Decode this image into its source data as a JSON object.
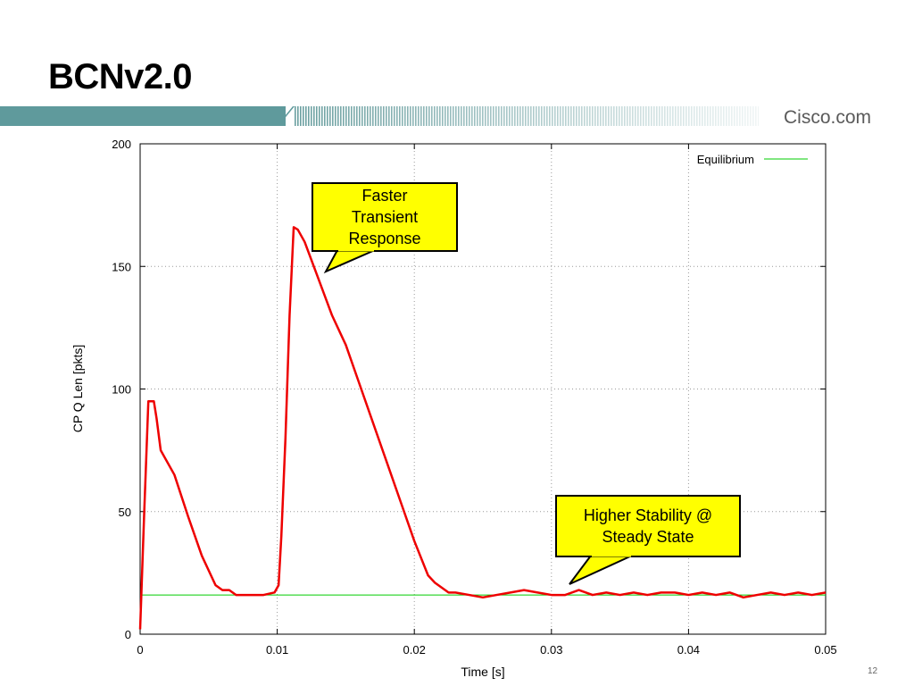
{
  "slide": {
    "title": "BCNv2.0",
    "brand": "Cisco.com",
    "page_number": "12"
  },
  "callouts": {
    "transient": "Faster\nTransient\nResponse",
    "stability": "Higher Stability @\nSteady State"
  },
  "colors": {
    "header_band": "#5f9a9c",
    "queue_series": "#ee0000",
    "equilibrium_series": "#00cc00",
    "callout_fill": "#ffff00"
  },
  "chart_data": {
    "type": "line",
    "xlabel": "Time [s]",
    "ylabel": "CP Q Len [pkts]",
    "xlim": [
      0,
      0.05
    ],
    "ylim": [
      0,
      200
    ],
    "x_ticks": [
      "0",
      "0.01",
      "0.02",
      "0.03",
      "0.04",
      "0.05"
    ],
    "y_ticks": [
      "0",
      "50",
      "100",
      "150",
      "200"
    ],
    "grid": true,
    "legend_position": "top-right",
    "series": [
      {
        "name": "Equilibrium",
        "x": [
          0,
          0.05
        ],
        "y": [
          16,
          16
        ]
      },
      {
        "x": [
          0,
          0.0003,
          0.0006,
          0.001,
          0.0012,
          0.0015,
          0.0025,
          0.0035,
          0.0045,
          0.0055,
          0.006,
          0.0065,
          0.007,
          0.008,
          0.009,
          0.0098,
          0.0101,
          0.0103,
          0.0106,
          0.0109,
          0.0112,
          0.0115,
          0.012,
          0.013,
          0.014,
          0.015,
          0.016,
          0.017,
          0.018,
          0.019,
          0.02,
          0.021,
          0.0215,
          0.022,
          0.0225,
          0.023,
          0.024,
          0.025,
          0.026,
          0.027,
          0.028,
          0.029,
          0.03,
          0.031,
          0.032,
          0.033,
          0.034,
          0.035,
          0.036,
          0.037,
          0.038,
          0.039,
          0.04,
          0.041,
          0.042,
          0.043,
          0.044,
          0.045,
          0.046,
          0.047,
          0.048,
          0.049,
          0.05
        ],
        "y": [
          2,
          50,
          95,
          95,
          88,
          75,
          65,
          48,
          32,
          20,
          18,
          18,
          16,
          16,
          16,
          17,
          20,
          40,
          80,
          130,
          166,
          165,
          160,
          145,
          130,
          118,
          102,
          86,
          70,
          54,
          38,
          24,
          21,
          19,
          17,
          17,
          16,
          15,
          16,
          17,
          18,
          17,
          16,
          16,
          18,
          16,
          17,
          16,
          17,
          16,
          17,
          17,
          16,
          17,
          16,
          17,
          15,
          16,
          17,
          16,
          17,
          16,
          17
        ]
      }
    ]
  }
}
